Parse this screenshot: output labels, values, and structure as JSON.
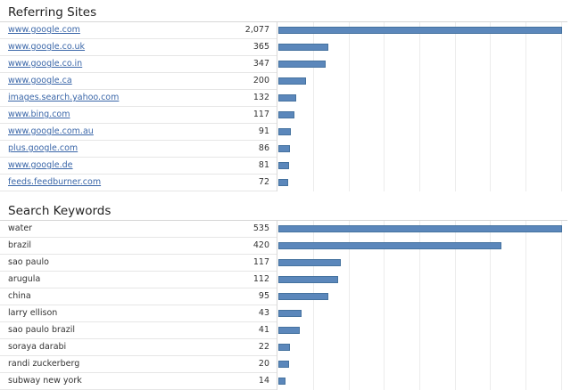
{
  "referring_sites": {
    "title": "Referring Sites",
    "rows": [
      {
        "label": "www.google.com",
        "value": "2,077",
        "amount": 2077
      },
      {
        "label": "www.google.co.uk",
        "value": "365",
        "amount": 365
      },
      {
        "label": "www.google.co.in",
        "value": "347",
        "amount": 347
      },
      {
        "label": "www.google.ca",
        "value": "200",
        "amount": 200
      },
      {
        "label": "images.search.yahoo.com",
        "value": "132",
        "amount": 132
      },
      {
        "label": "www.bing.com",
        "value": "117",
        "amount": 117
      },
      {
        "label": "www.google.com.au",
        "value": "91",
        "amount": 91
      },
      {
        "label": "plus.google.com",
        "value": "86",
        "amount": 86
      },
      {
        "label": "www.google.de",
        "value": "81",
        "amount": 81
      },
      {
        "label": "feeds.feedburner.com",
        "value": "72",
        "amount": 72
      }
    ]
  },
  "search_keywords": {
    "title": "Search Keywords",
    "rows": [
      {
        "label": "water",
        "value": "535",
        "amount": 535
      },
      {
        "label": "brazil",
        "value": "420",
        "amount": 420
      },
      {
        "label": "sao paulo",
        "value": "117",
        "amount": 117
      },
      {
        "label": "arugula",
        "value": "112",
        "amount": 112
      },
      {
        "label": "china",
        "value": "95",
        "amount": 95
      },
      {
        "label": "larry ellison",
        "value": "43",
        "amount": 43
      },
      {
        "label": "sao paulo brazil",
        "value": "41",
        "amount": 41
      },
      {
        "label": "soraya darabi",
        "value": "22",
        "amount": 22
      },
      {
        "label": "randi zuckerberg",
        "value": "20",
        "amount": 20
      },
      {
        "label": "subway new york",
        "value": "14",
        "amount": 14
      }
    ]
  },
  "colors": {
    "bar_fill": "#5b87bb",
    "link": "#3a66a8"
  }
}
